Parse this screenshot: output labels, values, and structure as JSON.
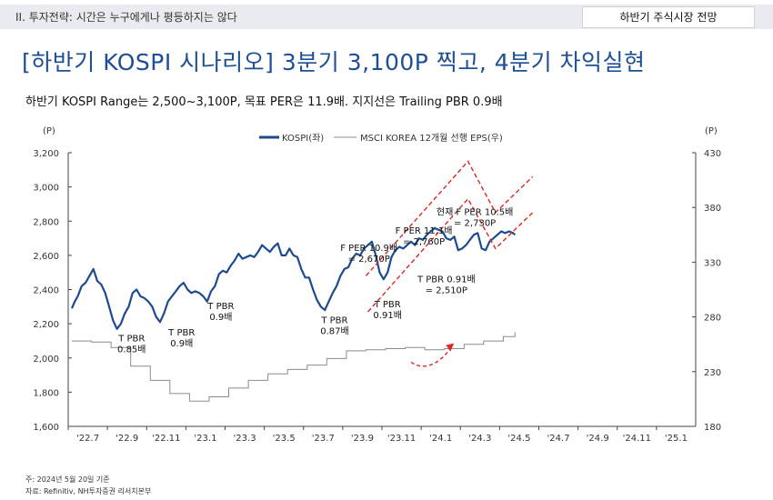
{
  "header": {
    "section_label": "II. 투자전략: 시간은 누구에게나 평등하지는 않다",
    "section_tab": "하반기 주식시장 전망"
  },
  "title": "[하반기 KOSPI 시나리오] 3분기 3,100P 찍고, 4분기 차익실현",
  "subtitle": "하반기 KOSPI Range는 2,500~3,100P, 목표 PER은 11.9배. 지지선은 Trailing PBR 0.9배",
  "footnote": "주: 2024년 5월 20일 기준",
  "source": "자료: Refinitiv, NH투자증권 리서치본부",
  "chart_data": {
    "type": "line",
    "left_unit": "(P)",
    "right_unit": "(P)",
    "grid": false,
    "legend_position": "top-center",
    "x_ticks": [
      "'22.7",
      "'22.9",
      "'22.11",
      "'23.1",
      "'23.3",
      "'23.5",
      "'23.7",
      "'23.9",
      "'23.11",
      "'24.1",
      "'24.3",
      "'24.5",
      "'24.7",
      "'24.9",
      "'24.11",
      "'25.1"
    ],
    "y_left": {
      "min": 1600,
      "max": 3200,
      "ticks": [
        "1,600",
        "1,800",
        "2,000",
        "2,200",
        "2,400",
        "2,600",
        "2,800",
        "3,000",
        "3,200"
      ]
    },
    "y_right": {
      "min": 180,
      "max": 430,
      "ticks": [
        "180",
        "230",
        "280",
        "330",
        "380",
        "430"
      ]
    },
    "series": [
      {
        "name": "KOSPI(좌)",
        "axis": "left",
        "color": "#1d4b8f",
        "x": [
          0,
          0.15,
          0.3,
          0.5,
          0.7,
          0.9,
          1.1,
          1.3,
          1.5,
          1.7,
          1.9,
          2.1,
          2.3,
          2.5,
          2.7,
          2.9,
          3.1,
          3.3,
          3.5,
          3.7,
          3.9,
          4.1,
          4.3,
          4.5,
          4.7,
          4.9,
          5.1,
          5.3,
          5.5,
          5.7,
          5.9,
          6.1,
          6.3,
          6.5,
          6.7,
          6.9,
          7.1,
          7.3,
          7.5,
          7.7,
          7.9,
          8.1,
          8.3,
          8.5,
          8.7,
          8.9,
          9.1,
          9.3,
          9.5,
          9.7,
          9.9,
          10.1,
          10.3,
          10.5,
          10.7,
          10.9,
          11.1,
          11.3,
          11.5,
          11.7,
          11.9,
          12.1,
          12.3,
          12.5,
          12.7,
          12.9,
          13.1,
          13.3,
          13.5,
          13.7,
          13.9,
          14.1,
          14.3,
          14.5,
          14.7,
          14.9,
          15.1,
          15.3,
          15.5,
          15.7,
          15.9,
          16.1,
          16.3,
          16.5,
          16.7,
          16.9,
          17.1,
          17.3,
          17.5,
          17.7,
          17.9,
          18.1,
          18.3,
          18.5,
          18.7,
          18.9,
          19.1,
          19.3,
          19.5,
          19.7,
          19.9,
          20.1,
          20.3,
          20.5,
          20.7,
          20.9,
          21.1,
          21.3,
          21.5,
          21.7,
          21.9,
          22.1,
          22.3,
          22.5,
          22.6
        ],
        "values": [
          2290,
          2330,
          2360,
          2420,
          2440,
          2480,
          2520,
          2450,
          2430,
          2380,
          2300,
          2220,
          2170,
          2200,
          2260,
          2300,
          2380,
          2400,
          2360,
          2350,
          2330,
          2300,
          2240,
          2210,
          2260,
          2330,
          2360,
          2390,
          2420,
          2440,
          2400,
          2380,
          2390,
          2380,
          2360,
          2330,
          2390,
          2420,
          2490,
          2510,
          2500,
          2540,
          2570,
          2610,
          2580,
          2590,
          2600,
          2590,
          2620,
          2660,
          2640,
          2620,
          2650,
          2670,
          2600,
          2600,
          2640,
          2600,
          2590,
          2520,
          2470,
          2470,
          2400,
          2340,
          2300,
          2280,
          2330,
          2380,
          2420,
          2480,
          2520,
          2530,
          2580,
          2610,
          2600,
          2640,
          2660,
          2680,
          2600,
          2500,
          2460,
          2500,
          2590,
          2630,
          2650,
          2640,
          2660,
          2680,
          2660,
          2700,
          2690,
          2720,
          2740,
          2760,
          2750,
          2740,
          2700,
          2690,
          2710,
          2630,
          2640,
          2660,
          2690,
          2720,
          2730,
          2640,
          2630,
          2680,
          2700,
          2720,
          2740,
          2730,
          2740,
          2730,
          2720
        ]
      },
      {
        "name": "MSCI KOREA 12개월 선행 EPS(우)",
        "axis": "right",
        "color": "#8b8b94",
        "x": [
          0,
          1,
          2,
          3,
          4,
          5,
          6,
          7,
          8,
          9,
          10,
          11,
          12,
          13,
          14,
          15,
          16,
          17,
          18,
          19,
          20,
          21,
          22,
          22.6
        ],
        "values": [
          258,
          257,
          252,
          235,
          222,
          210,
          203,
          207,
          215,
          222,
          228,
          232,
          236,
          242,
          249,
          250,
          251,
          252,
          250,
          251,
          255,
          258,
          262,
          266
        ]
      }
    ],
    "scenario_band": {
      "style": "dashed",
      "color": "#e02626",
      "upper": {
        "x": [
          15,
          20.2,
          21.6,
          23.5
        ],
        "values": [
          2480,
          3150,
          2850,
          3060
        ]
      },
      "lower": {
        "x": [
          15.1,
          20.2,
          21.6,
          23.5
        ],
        "values": [
          2270,
          2930,
          2640,
          2850
        ]
      },
      "arrow": {
        "x": [
          17.3,
          18.1,
          18.9,
          19.4
        ],
        "values": [
          1975,
          1945,
          1985,
          2070
        ]
      }
    },
    "annotations": [
      {
        "lines": [
          "T PBR",
          "0.85배"
        ],
        "x": 3.05,
        "y": 2160
      },
      {
        "lines": [
          "T PBR",
          "0.9배"
        ],
        "x": 5.6,
        "y": 2195
      },
      {
        "lines": [
          "T PBR",
          "0.9배"
        ],
        "x": 7.6,
        "y": 2350
      },
      {
        "lines": [
          "T PBR",
          "0.87배"
        ],
        "x": 13.4,
        "y": 2268
      },
      {
        "lines": [
          "F PER 10.9배",
          "= 2,670P"
        ],
        "x": 15.15,
        "y": 2690
      },
      {
        "lines": [
          "T PBR",
          "0.91배"
        ],
        "x": 16.1,
        "y": 2360
      },
      {
        "lines": [
          "F PER 11.1배",
          "= 2,760P"
        ],
        "x": 17.95,
        "y": 2790
      },
      {
        "lines": [
          "T PBR 0.91배",
          "= 2,510P"
        ],
        "x": 19.1,
        "y": 2505
      },
      {
        "lines": [
          "현재 F PER 10.5배",
          "= 2,730P"
        ],
        "x": 20.55,
        "y": 2900
      }
    ]
  }
}
